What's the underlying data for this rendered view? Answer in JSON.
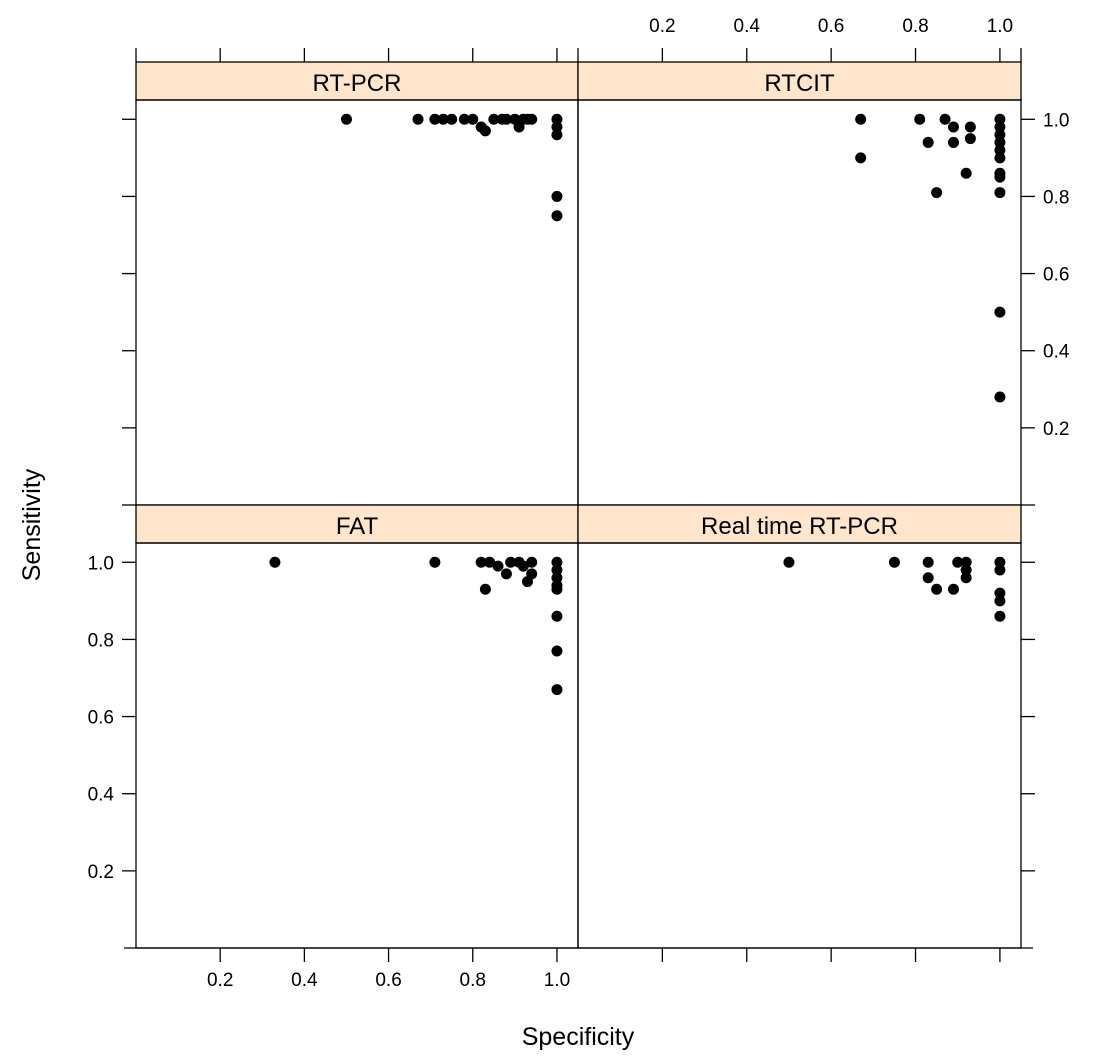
{
  "chart_data": {
    "type": "scatter",
    "layout": "2x2 lattice (trellis) panels",
    "xlabel": "Specificity",
    "ylabel": "Sensitivity",
    "xlim": [
      0,
      1.05
    ],
    "ylim": [
      0,
      1.05
    ],
    "x_ticks": [
      0.2,
      0.4,
      0.6,
      0.8,
      1.0
    ],
    "y_ticks": [
      0.2,
      0.4,
      0.6,
      0.8,
      1.0
    ],
    "x_tick_labels": [
      "0.2",
      "0.4",
      "0.6",
      "0.8",
      "1.0"
    ],
    "y_tick_labels": [
      "0.2",
      "0.4",
      "0.6",
      "0.8",
      "1.0"
    ],
    "strip_color": "#ffe5cc",
    "point_color": "#000000",
    "panels": [
      {
        "name": "RT-PCR",
        "position": "top-left",
        "points": [
          {
            "x": 0.5,
            "y": 1.0
          },
          {
            "x": 0.67,
            "y": 1.0
          },
          {
            "x": 0.71,
            "y": 1.0
          },
          {
            "x": 0.73,
            "y": 1.0
          },
          {
            "x": 0.75,
            "y": 1.0
          },
          {
            "x": 0.78,
            "y": 1.0
          },
          {
            "x": 0.8,
            "y": 1.0
          },
          {
            "x": 0.82,
            "y": 0.98
          },
          {
            "x": 0.83,
            "y": 0.97
          },
          {
            "x": 0.85,
            "y": 1.0
          },
          {
            "x": 0.87,
            "y": 1.0
          },
          {
            "x": 0.88,
            "y": 1.0
          },
          {
            "x": 0.9,
            "y": 1.0
          },
          {
            "x": 0.91,
            "y": 0.98
          },
          {
            "x": 0.92,
            "y": 1.0
          },
          {
            "x": 0.93,
            "y": 1.0
          },
          {
            "x": 0.94,
            "y": 1.0
          },
          {
            "x": 1.0,
            "y": 1.0
          },
          {
            "x": 1.0,
            "y": 0.98
          },
          {
            "x": 1.0,
            "y": 0.96
          },
          {
            "x": 1.0,
            "y": 0.8
          },
          {
            "x": 1.0,
            "y": 0.75
          }
        ]
      },
      {
        "name": "RTCIT",
        "position": "top-right",
        "points": [
          {
            "x": 0.67,
            "y": 1.0
          },
          {
            "x": 0.67,
            "y": 0.9
          },
          {
            "x": 0.81,
            "y": 1.0
          },
          {
            "x": 0.83,
            "y": 0.94
          },
          {
            "x": 0.85,
            "y": 0.81
          },
          {
            "x": 0.87,
            "y": 1.0
          },
          {
            "x": 0.89,
            "y": 0.98
          },
          {
            "x": 0.89,
            "y": 0.94
          },
          {
            "x": 0.92,
            "y": 0.86
          },
          {
            "x": 0.93,
            "y": 0.98
          },
          {
            "x": 0.93,
            "y": 0.95
          },
          {
            "x": 1.0,
            "y": 1.0
          },
          {
            "x": 1.0,
            "y": 0.98
          },
          {
            "x": 1.0,
            "y": 0.96
          },
          {
            "x": 1.0,
            "y": 0.94
          },
          {
            "x": 1.0,
            "y": 0.92
          },
          {
            "x": 1.0,
            "y": 0.9
          },
          {
            "x": 1.0,
            "y": 0.86
          },
          {
            "x": 1.0,
            "y": 0.85
          },
          {
            "x": 1.0,
            "y": 0.81
          },
          {
            "x": 1.0,
            "y": 0.5
          },
          {
            "x": 1.0,
            "y": 0.28
          }
        ]
      },
      {
        "name": "FAT",
        "position": "bottom-left",
        "points": [
          {
            "x": 0.33,
            "y": 1.0
          },
          {
            "x": 0.71,
            "y": 1.0
          },
          {
            "x": 0.82,
            "y": 1.0
          },
          {
            "x": 0.83,
            "y": 0.93
          },
          {
            "x": 0.84,
            "y": 1.0
          },
          {
            "x": 0.86,
            "y": 0.99
          },
          {
            "x": 0.88,
            "y": 0.97
          },
          {
            "x": 0.89,
            "y": 1.0
          },
          {
            "x": 0.91,
            "y": 1.0
          },
          {
            "x": 0.92,
            "y": 0.99
          },
          {
            "x": 0.93,
            "y": 0.95
          },
          {
            "x": 0.94,
            "y": 0.97
          },
          {
            "x": 0.94,
            "y": 1.0
          },
          {
            "x": 1.0,
            "y": 1.0
          },
          {
            "x": 1.0,
            "y": 0.98
          },
          {
            "x": 1.0,
            "y": 0.96
          },
          {
            "x": 1.0,
            "y": 0.94
          },
          {
            "x": 1.0,
            "y": 0.93
          },
          {
            "x": 1.0,
            "y": 0.86
          },
          {
            "x": 1.0,
            "y": 0.77
          },
          {
            "x": 1.0,
            "y": 0.67
          }
        ]
      },
      {
        "name": "Real time RT-PCR",
        "position": "bottom-right",
        "points": [
          {
            "x": 0.5,
            "y": 1.0
          },
          {
            "x": 0.75,
            "y": 1.0
          },
          {
            "x": 0.83,
            "y": 1.0
          },
          {
            "x": 0.83,
            "y": 0.96
          },
          {
            "x": 0.85,
            "y": 0.93
          },
          {
            "x": 0.89,
            "y": 0.93
          },
          {
            "x": 0.9,
            "y": 1.0
          },
          {
            "x": 0.92,
            "y": 1.0
          },
          {
            "x": 0.92,
            "y": 0.96
          },
          {
            "x": 0.92,
            "y": 0.98
          },
          {
            "x": 1.0,
            "y": 1.0
          },
          {
            "x": 1.0,
            "y": 0.98
          },
          {
            "x": 1.0,
            "y": 0.92
          },
          {
            "x": 1.0,
            "y": 0.9
          },
          {
            "x": 1.0,
            "y": 0.86
          }
        ]
      }
    ]
  }
}
